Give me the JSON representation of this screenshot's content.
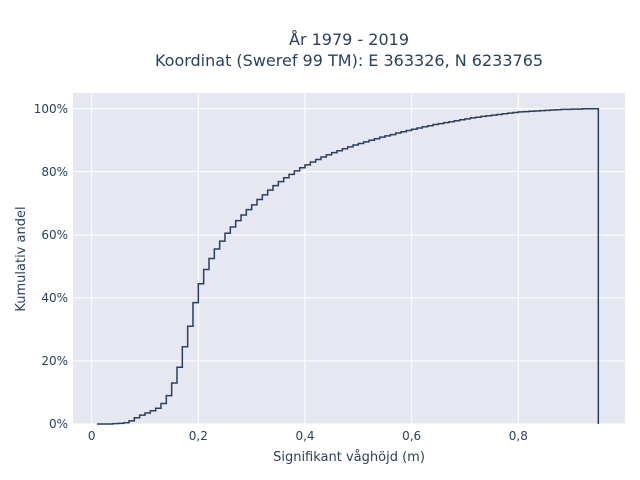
{
  "chart_data": {
    "type": "line",
    "step": true,
    "title_line1": "År 1979 - 2019",
    "title_line2": "Koordinat (Sweref 99 TM): E 363326, N 6233765",
    "xlabel": "Signifikant våghöjd (m)",
    "ylabel": "Kumulativ andel",
    "xlim": [
      -0.035,
      1.0
    ],
    "ylim": [
      0,
      1.05
    ],
    "x_ticks": [
      0,
      0.2,
      0.4,
      0.6,
      0.8
    ],
    "x_tick_labels": [
      "0",
      "0,2",
      "0,4",
      "0,6",
      "0,8"
    ],
    "y_ticks": [
      0,
      0.2,
      0.4,
      0.6,
      0.8,
      1.0
    ],
    "y_tick_labels": [
      "0%",
      "20%",
      "40%",
      "60%",
      "80%",
      "100%"
    ],
    "grid": true,
    "colors": {
      "background": "#e5e8f0",
      "grid": "#ffffff",
      "line": "#2a3f5f"
    },
    "series": [
      {
        "x": [
          0.01,
          0.02,
          0.03,
          0.04,
          0.05,
          0.06,
          0.07,
          0.08,
          0.09,
          0.1,
          0.11,
          0.12,
          0.13,
          0.14,
          0.15,
          0.16,
          0.17,
          0.18,
          0.19,
          0.2,
          0.21,
          0.22,
          0.23,
          0.24,
          0.25,
          0.26,
          0.27,
          0.28,
          0.29,
          0.3,
          0.31,
          0.32,
          0.33,
          0.34,
          0.35,
          0.36,
          0.37,
          0.38,
          0.39,
          0.4,
          0.41,
          0.42,
          0.43,
          0.44,
          0.45,
          0.46,
          0.47,
          0.48,
          0.49,
          0.5,
          0.51,
          0.52,
          0.53,
          0.54,
          0.55,
          0.56,
          0.57,
          0.58,
          0.59,
          0.6,
          0.61,
          0.62,
          0.63,
          0.64,
          0.65,
          0.66,
          0.67,
          0.68,
          0.69,
          0.7,
          0.71,
          0.72,
          0.73,
          0.74,
          0.75,
          0.76,
          0.77,
          0.78,
          0.79,
          0.8,
          0.81,
          0.82,
          0.83,
          0.84,
          0.85,
          0.86,
          0.87,
          0.88,
          0.89,
          0.9,
          0.91,
          0.92,
          0.93,
          0.94,
          0.95
        ],
        "y": [
          0.0,
          0.0,
          0.0,
          0.001,
          0.002,
          0.004,
          0.01,
          0.02,
          0.028,
          0.035,
          0.042,
          0.05,
          0.065,
          0.09,
          0.13,
          0.18,
          0.245,
          0.31,
          0.385,
          0.445,
          0.49,
          0.525,
          0.555,
          0.58,
          0.605,
          0.625,
          0.645,
          0.663,
          0.68,
          0.695,
          0.712,
          0.727,
          0.742,
          0.756,
          0.769,
          0.781,
          0.792,
          0.803,
          0.813,
          0.822,
          0.831,
          0.839,
          0.847,
          0.854,
          0.861,
          0.867,
          0.873,
          0.879,
          0.885,
          0.89,
          0.895,
          0.9,
          0.905,
          0.91,
          0.914,
          0.918,
          0.923,
          0.927,
          0.931,
          0.935,
          0.939,
          0.943,
          0.946,
          0.95,
          0.953,
          0.956,
          0.959,
          0.962,
          0.965,
          0.968,
          0.971,
          0.973,
          0.976,
          0.978,
          0.98,
          0.982,
          0.984,
          0.986,
          0.988,
          0.99,
          0.991,
          0.992,
          0.993,
          0.994,
          0.995,
          0.996,
          0.997,
          0.998,
          0.998,
          0.999,
          0.999,
          1.0,
          1.0,
          1.0,
          1.0
        ]
      }
    ]
  }
}
